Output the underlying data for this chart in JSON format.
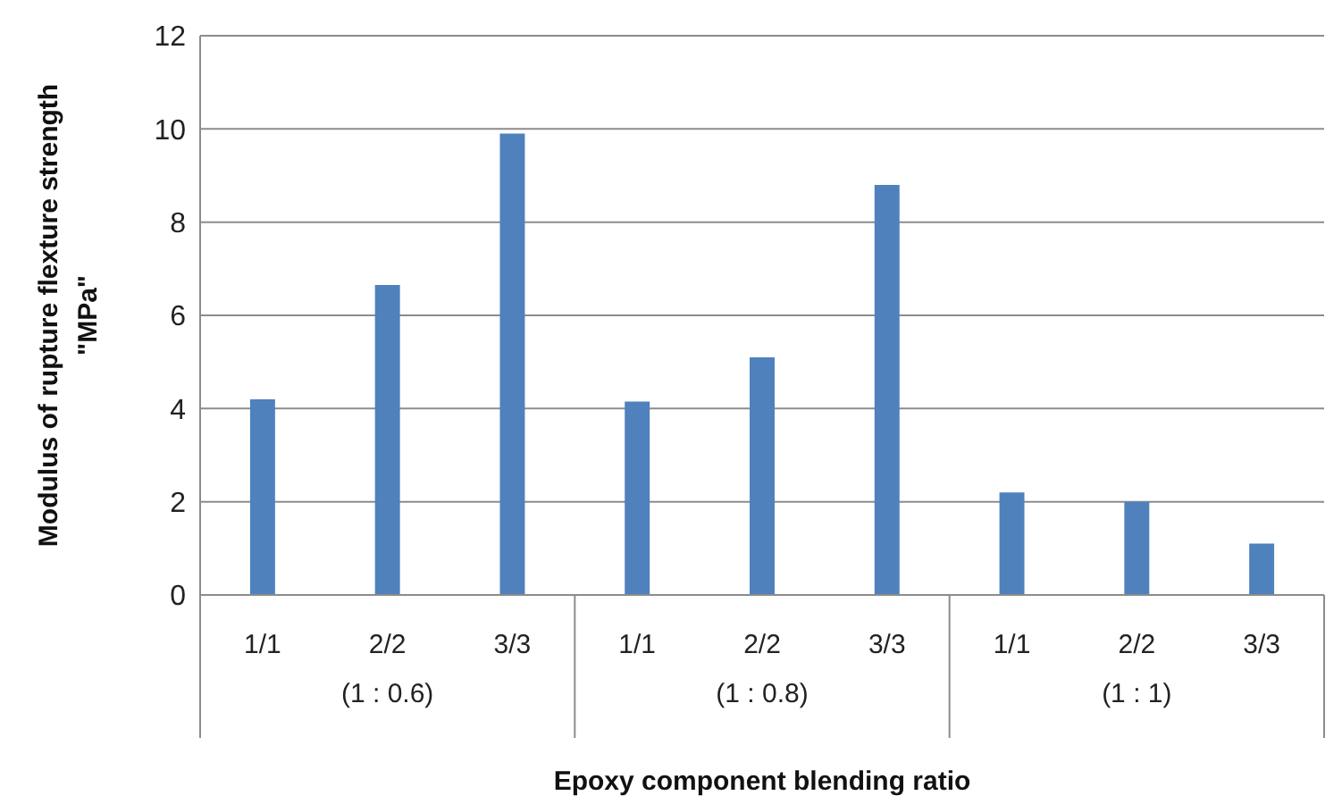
{
  "chart_data": {
    "type": "bar",
    "xlabel": "Epoxy component blending ratio",
    "ylabel": "Modulus of rupture    flexture strength\n\"MPa\"",
    "categories": [
      "1/1",
      "2/2",
      "3/3",
      "1/1",
      "2/2",
      "3/3",
      "1/1",
      "2/2",
      "3/3"
    ],
    "values": [
      4.2,
      6.65,
      9.9,
      4.15,
      5.1,
      8.8,
      2.2,
      2.0,
      1.1
    ],
    "color": "#4f81bd",
    "ylim": [
      0,
      12
    ],
    "yticks": [
      0,
      2,
      4,
      6,
      8,
      10,
      12
    ],
    "grid": "y",
    "annotations": [
      "(1 : 0.6)",
      "(1 : 0.8)",
      "(1 : 1)"
    ]
  }
}
